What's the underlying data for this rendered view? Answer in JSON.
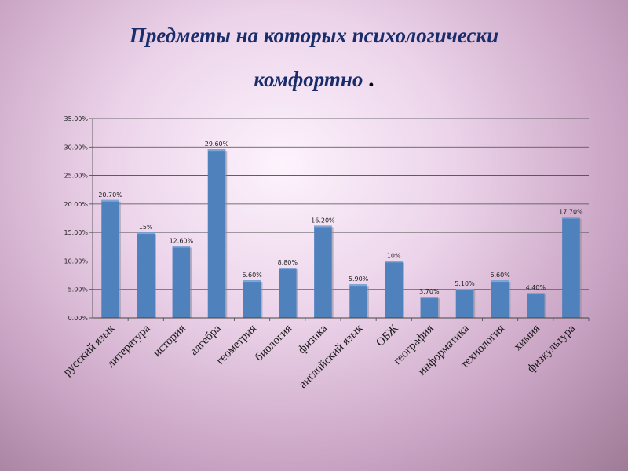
{
  "slide": {
    "title_line1": "Предметы на которых психологически",
    "title_line2": "комфортно",
    "title_dot": "."
  },
  "chart_data": {
    "type": "bar",
    "title": "Предметы на которых психологически комфортно.",
    "categories": [
      "русский язык",
      "литература",
      "история",
      "алгебра",
      "геометрия",
      "биология",
      "физика",
      "английский язык",
      "ОБЖ",
      "география",
      "информатика",
      "технология",
      "химия",
      "физкультура"
    ],
    "values": [
      20.7,
      15,
      12.6,
      29.6,
      6.6,
      8.8,
      16.2,
      5.9,
      10,
      3.7,
      5.1,
      6.6,
      4.4,
      17.7
    ],
    "data_labels": [
      "20.70%",
      "15%",
      "12.60%",
      "29.60%",
      "6.60%",
      "8.80%",
      "16.20%",
      "5.90%",
      "10%",
      "3.70%",
      "5.10%",
      "6.60%",
      "4.40%",
      "17.70%"
    ],
    "yticks": [
      "0.00%",
      "5.00%",
      "10.00%",
      "15.00%",
      "20.00%",
      "25.00%",
      "30.00%",
      "35.00%"
    ],
    "ylim": [
      0,
      35
    ],
    "xlabel": "",
    "ylabel": "",
    "grid": true,
    "legend": "none",
    "bar_color": "#4f81bd"
  }
}
